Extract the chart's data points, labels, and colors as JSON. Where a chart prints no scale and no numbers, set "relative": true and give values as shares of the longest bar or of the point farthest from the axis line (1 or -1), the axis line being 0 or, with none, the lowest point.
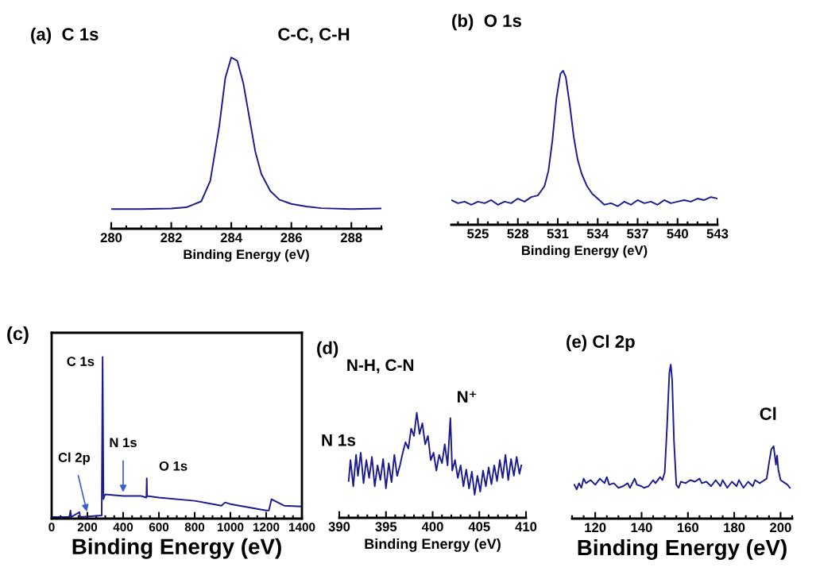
{
  "chart_data": [
    {
      "type": "line",
      "title": "(a)  C 1s",
      "xlabel": "Binding Energy (eV)",
      "relative": true,
      "tick_labels": "x",
      "xlim": [
        280,
        289
      ],
      "xticks": [
        280,
        282,
        284,
        286,
        288
      ],
      "annotations": [
        "C-C, C-H"
      ],
      "series": [
        {
          "color": "#1c1c8f",
          "x": [
            280,
            281,
            282,
            282.5,
            283,
            283.3,
            283.6,
            283.8,
            284,
            284.2,
            284.4,
            284.6,
            284.8,
            285,
            285.3,
            285.6,
            286,
            286.5,
            287,
            288,
            289
          ],
          "values": [
            0.115,
            0.115,
            0.118,
            0.125,
            0.16,
            0.28,
            0.6,
            0.88,
            1.0,
            0.98,
            0.85,
            0.65,
            0.45,
            0.32,
            0.22,
            0.17,
            0.145,
            0.13,
            0.12,
            0.115,
            0.118
          ]
        }
      ]
    },
    {
      "type": "line",
      "title": "(b)  O 1s",
      "xlabel": "Binding Energy (eV)",
      "relative": true,
      "tick_labels": "x",
      "xlim": [
        523,
        543
      ],
      "xticks": [
        525,
        528,
        531,
        534,
        537,
        540,
        543
      ],
      "series": [
        {
          "color": "#1c1c8f",
          "x": [
            523,
            523.5,
            524,
            524.5,
            525,
            525.5,
            526,
            526.5,
            527,
            527.5,
            528,
            528.5,
            529,
            529.5,
            530,
            530.3,
            530.6,
            530.9,
            531.2,
            531.4,
            531.6,
            531.9,
            532.2,
            532.5,
            532.8,
            533.2,
            533.6,
            534,
            534.5,
            535,
            535.5,
            536,
            536.5,
            537,
            537.5,
            538,
            538.5,
            539,
            539.5,
            540,
            540.5,
            541,
            541.5,
            542,
            542.5,
            543
          ],
          "values": [
            0.16,
            0.14,
            0.15,
            0.13,
            0.15,
            0.14,
            0.16,
            0.13,
            0.15,
            0.14,
            0.17,
            0.15,
            0.18,
            0.19,
            0.25,
            0.35,
            0.55,
            0.82,
            0.98,
            1.0,
            0.96,
            0.78,
            0.57,
            0.42,
            0.33,
            0.25,
            0.2,
            0.17,
            0.13,
            0.14,
            0.12,
            0.15,
            0.13,
            0.16,
            0.14,
            0.15,
            0.13,
            0.16,
            0.14,
            0.15,
            0.16,
            0.15,
            0.17,
            0.16,
            0.18,
            0.17
          ]
        }
      ]
    },
    {
      "type": "line",
      "title": "(c)",
      "xlabel": "Binding Energy (eV)",
      "relative": true,
      "tick_labels": "x",
      "xlim": [
        0,
        1400
      ],
      "xticks": [
        0,
        200,
        400,
        600,
        800,
        1000,
        1200,
        1400
      ],
      "annotations": [
        {
          "text": "C 1s",
          "x": 285,
          "y": 1.0
        },
        {
          "text": "Cl 2p",
          "x": 200,
          "y": 0.03
        },
        {
          "text": "N 1s",
          "x": 400,
          "y": 0.15
        },
        {
          "text": "O 1s",
          "x": 532,
          "y": 0.25
        }
      ],
      "series": [
        {
          "color": "#1c1c8f",
          "x": [
            0,
            100,
            105,
            110,
            155,
            160,
            280,
            285,
            290,
            295,
            300,
            400,
            500,
            530,
            532,
            534,
            600,
            800,
            950,
            970,
            1000,
            1200,
            1215,
            1230,
            1300,
            1400
          ],
          "values": [
            0.01,
            0.01,
            0.05,
            0.01,
            0.04,
            0.01,
            0.02,
            1.0,
            0.12,
            0.14,
            0.15,
            0.14,
            0.14,
            0.13,
            0.25,
            0.14,
            0.13,
            0.11,
            0.08,
            0.1,
            0.09,
            0.05,
            0.05,
            0.12,
            0.08,
            0.075
          ]
        }
      ]
    },
    {
      "type": "line",
      "title": "(d)",
      "subtitle": "N 1s",
      "xlabel": "Binding Energy (eV)",
      "relative": true,
      "tick_labels": "x",
      "xlim": [
        390,
        410
      ],
      "xticks": [
        390,
        395,
        400,
        405,
        410
      ],
      "annotations": [
        {
          "text": "N-H, C-N",
          "x": 398.3,
          "y": 1.0
        },
        {
          "text": "N⁺",
          "x": 401.9,
          "y": 0.95
        }
      ],
      "series": [
        {
          "color": "#1c1c8f",
          "x": [
            391.0,
            391.2,
            391.5,
            391.8,
            392.0,
            392.3,
            392.6,
            392.9,
            393.2,
            393.5,
            393.8,
            394.1,
            394.4,
            394.7,
            395.0,
            395.3,
            395.6,
            395.9,
            396.2,
            396.5,
            396.8,
            397.1,
            397.4,
            397.7,
            398.0,
            398.3,
            398.6,
            398.9,
            399.2,
            399.5,
            399.8,
            400.1,
            400.4,
            400.7,
            401.0,
            401.3,
            401.6,
            401.9,
            402.1,
            402.4,
            402.7,
            403.0,
            403.3,
            403.6,
            403.9,
            404.2,
            404.5,
            404.8,
            405.1,
            405.4,
            405.7,
            406.0,
            406.3,
            406.6,
            406.9,
            407.2,
            407.5,
            407.8,
            408.1,
            408.4,
            408.7,
            409.0,
            409.3,
            409.5
          ],
          "values": [
            0.35,
            0.55,
            0.3,
            0.6,
            0.4,
            0.62,
            0.33,
            0.55,
            0.38,
            0.58,
            0.3,
            0.5,
            0.36,
            0.56,
            0.28,
            0.52,
            0.34,
            0.6,
            0.4,
            0.5,
            0.62,
            0.72,
            0.66,
            0.85,
            0.78,
            1.0,
            0.8,
            0.9,
            0.7,
            0.78,
            0.55,
            0.62,
            0.45,
            0.6,
            0.52,
            0.7,
            0.5,
            0.95,
            0.45,
            0.55,
            0.38,
            0.5,
            0.3,
            0.46,
            0.28,
            0.44,
            0.22,
            0.4,
            0.25,
            0.45,
            0.3,
            0.48,
            0.32,
            0.5,
            0.35,
            0.55,
            0.38,
            0.6,
            0.36,
            0.56,
            0.4,
            0.58,
            0.42,
            0.5
          ]
        }
      ]
    },
    {
      "type": "line",
      "title": "(e) Cl 2p",
      "xlabel": "Binding Energy (eV)",
      "relative": true,
      "tick_labels": "x",
      "xlim": [
        110,
        205
      ],
      "xticks": [
        120,
        140,
        160,
        180,
        200
      ],
      "annotations": [
        {
          "text": "Cl",
          "x": 197,
          "y": 0.47
        }
      ],
      "series": [
        {
          "color": "#1c1c8f",
          "x": [
            111,
            112,
            113,
            114,
            115,
            116,
            118,
            120,
            122,
            124,
            125,
            126,
            128,
            130,
            132,
            134,
            135,
            137,
            138,
            140,
            141,
            143,
            145,
            146,
            148,
            149,
            150,
            151,
            152,
            152.6,
            153.2,
            154,
            155,
            156,
            157,
            159,
            161,
            163,
            165,
            166,
            168,
            170,
            172,
            174,
            175,
            177,
            179,
            181,
            182,
            184,
            186,
            188,
            189,
            191,
            192,
            194,
            195,
            196,
            197,
            198,
            198.5,
            199,
            200,
            202,
            203,
            204
          ],
          "values": [
            0.22,
            0.19,
            0.23,
            0.2,
            0.26,
            0.23,
            0.25,
            0.22,
            0.26,
            0.23,
            0.27,
            0.22,
            0.23,
            0.2,
            0.21,
            0.23,
            0.2,
            0.26,
            0.22,
            0.21,
            0.2,
            0.21,
            0.25,
            0.23,
            0.27,
            0.25,
            0.3,
            0.6,
            0.95,
            1.0,
            0.9,
            0.5,
            0.22,
            0.2,
            0.24,
            0.23,
            0.25,
            0.24,
            0.26,
            0.23,
            0.24,
            0.21,
            0.25,
            0.21,
            0.25,
            0.2,
            0.24,
            0.21,
            0.25,
            0.2,
            0.24,
            0.21,
            0.25,
            0.23,
            0.24,
            0.26,
            0.36,
            0.45,
            0.47,
            0.35,
            0.41,
            0.32,
            0.25,
            0.23,
            0.22,
            0.2
          ]
        }
      ]
    }
  ]
}
